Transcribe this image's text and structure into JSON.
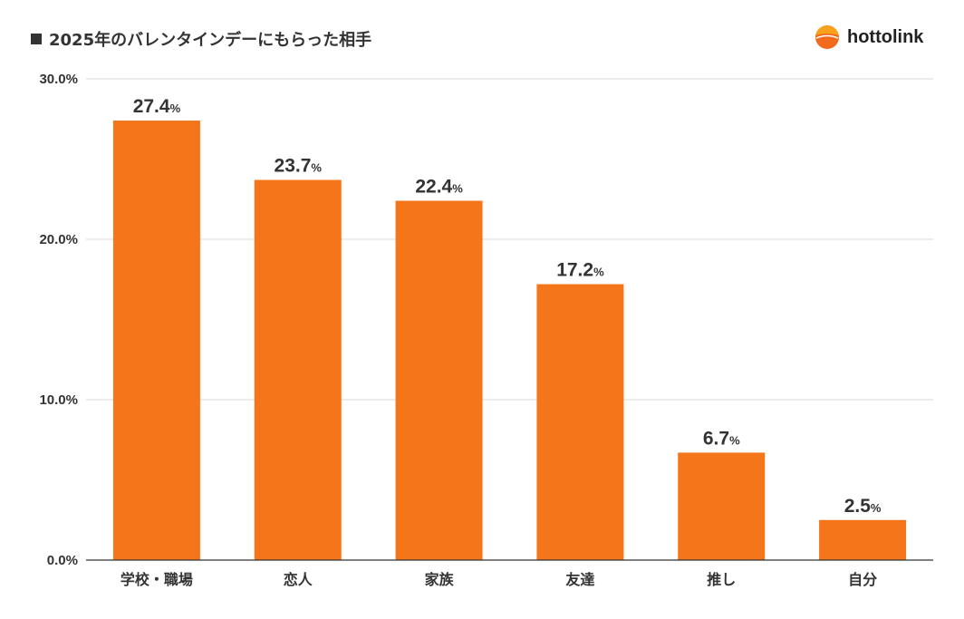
{
  "header": {
    "title": "2025年のバレンタインデーにもらった相手",
    "brand": "hottolink"
  },
  "colors": {
    "bar": "#F5761A",
    "text": "#333333",
    "grid": "#D9D9D9",
    "axis": "#333333",
    "logo_top": "#F9A21B",
    "logo_bottom": "#F26B1D"
  },
  "chart_data": {
    "type": "bar",
    "title": "2025年のバレンタインデーにもらった相手",
    "categories": [
      "学校・職場",
      "恋人",
      "家族",
      "友達",
      "推し",
      "自分"
    ],
    "values": [
      27.4,
      23.7,
      22.4,
      17.2,
      6.7,
      2.5
    ],
    "value_labels": [
      "27.4",
      "23.7",
      "22.4",
      "17.2",
      "6.7",
      "2.5"
    ],
    "value_unit": "%",
    "y_ticks": [
      "0.0%",
      "10.0%",
      "20.0%",
      "30.0%"
    ],
    "y_tick_values": [
      0,
      10,
      20,
      30
    ],
    "ylim": [
      0,
      30
    ],
    "xlabel": "",
    "ylabel": "",
    "grid": true,
    "legend": "none"
  }
}
